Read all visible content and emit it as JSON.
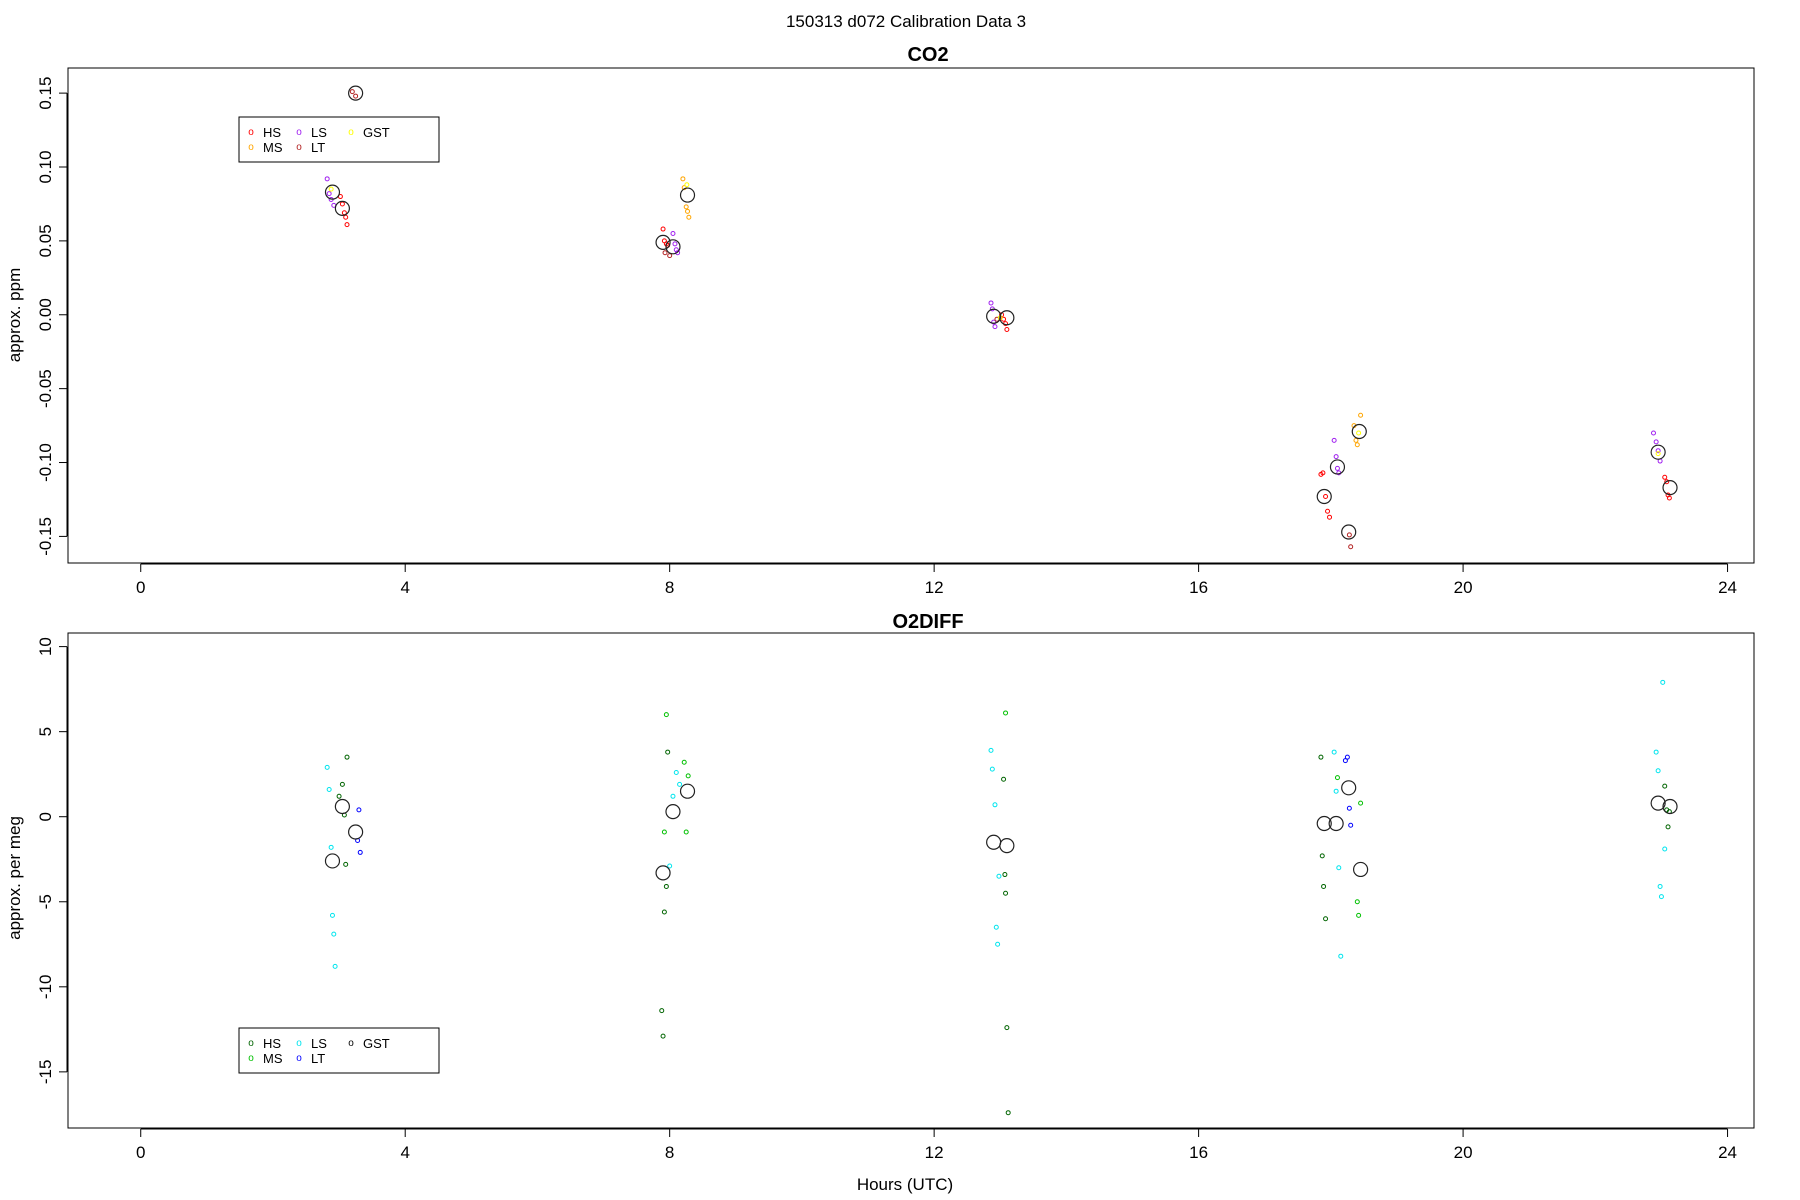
{
  "figure": {
    "title": "150313   d072   Calibration Data 3"
  },
  "legend_symbol": "o",
  "chart_data": [
    {
      "type": "scatter",
      "title": "CO2",
      "xlabel": "",
      "ylabel": "approx. ppm",
      "xlim": [
        -1.1,
        24.4
      ],
      "ylim": [
        -0.168,
        0.167
      ],
      "xticks": [
        0,
        4,
        8,
        12,
        16,
        20,
        24
      ],
      "yticks": [
        {
          "v": 0.15,
          "label": "0.15"
        },
        {
          "v": 0.1,
          "label": "0.10"
        },
        {
          "v": 0.05,
          "label": "0.05"
        },
        {
          "v": 0.0,
          "label": "0.00"
        },
        {
          "v": -0.05,
          "label": "-0.05"
        },
        {
          "v": -0.1,
          "label": "-0.10"
        },
        {
          "v": -0.15,
          "label": "-0.15"
        }
      ],
      "grid": false,
      "legend": {
        "position": "top-left",
        "entries": [
          "HS",
          "MS",
          "LS",
          "LT",
          "GST"
        ]
      },
      "series": [
        {
          "name": "HS",
          "color": "#ff0000",
          "points": [
            [
              3.02,
              0.08
            ],
            [
              3.05,
              0.075
            ],
            [
              3.08,
              0.069
            ],
            [
              3.1,
              0.066
            ],
            [
              3.12,
              0.061
            ],
            [
              7.9,
              0.058
            ],
            [
              7.92,
              0.05
            ],
            [
              7.95,
              0.048
            ],
            [
              7.97,
              0.047
            ],
            [
              13.02,
              0.0
            ],
            [
              13.05,
              -0.003
            ],
            [
              13.08,
              -0.006
            ],
            [
              13.1,
              -0.01
            ],
            [
              17.85,
              -0.108
            ],
            [
              17.88,
              -0.107
            ],
            [
              17.92,
              -0.123
            ],
            [
              17.95,
              -0.133
            ],
            [
              17.98,
              -0.137
            ],
            [
              23.05,
              -0.11
            ],
            [
              23.08,
              -0.113
            ],
            [
              23.1,
              -0.122
            ],
            [
              23.12,
              -0.124
            ]
          ]
        },
        {
          "name": "MS",
          "color": "#ffa500",
          "points": [
            [
              8.2,
              0.092
            ],
            [
              8.22,
              0.086
            ],
            [
              8.25,
              0.073
            ],
            [
              8.27,
              0.07
            ],
            [
              8.29,
              0.066
            ],
            [
              18.35,
              -0.075
            ],
            [
              18.38,
              -0.085
            ],
            [
              18.4,
              -0.088
            ],
            [
              18.45,
              -0.068
            ]
          ]
        },
        {
          "name": "LS",
          "color": "#a020f0",
          "points": [
            [
              2.82,
              0.092
            ],
            [
              2.85,
              0.082
            ],
            [
              2.88,
              0.078
            ],
            [
              2.92,
              0.074
            ],
            [
              8.05,
              0.055
            ],
            [
              8.08,
              0.048
            ],
            [
              8.1,
              0.044
            ],
            [
              8.12,
              0.042
            ],
            [
              12.86,
              0.008
            ],
            [
              12.88,
              0.004
            ],
            [
              12.9,
              -0.005
            ],
            [
              12.92,
              -0.008
            ],
            [
              18.05,
              -0.085
            ],
            [
              18.08,
              -0.096
            ],
            [
              18.1,
              -0.104
            ],
            [
              18.12,
              -0.107
            ],
            [
              22.88,
              -0.08
            ],
            [
              22.92,
              -0.086
            ],
            [
              22.95,
              -0.092
            ],
            [
              22.98,
              -0.099
            ]
          ]
        },
        {
          "name": "LT",
          "color": "#b22222",
          "points": [
            [
              3.2,
              0.151
            ],
            [
              3.25,
              0.148
            ],
            [
              7.93,
              0.042
            ],
            [
              8.0,
              0.04
            ],
            [
              12.95,
              -0.003
            ],
            [
              18.28,
              -0.149
            ],
            [
              18.3,
              -0.157
            ]
          ]
        },
        {
          "name": "GST",
          "color": "#ffff00",
          "points": [
            [
              2.88,
              0.085
            ],
            [
              8.26,
              0.088
            ],
            [
              13.0,
              -0.002
            ],
            [
              18.42,
              -0.08
            ],
            [
              22.95,
              -0.094
            ]
          ]
        },
        {
          "name": "",
          "color": "#000000",
          "big": true,
          "points": [
            [
              2.9,
              0.083
            ],
            [
              3.05,
              0.072
            ],
            [
              3.25,
              0.15
            ],
            [
              7.9,
              0.049
            ],
            [
              8.05,
              0.046
            ],
            [
              8.27,
              0.081
            ],
            [
              12.9,
              -0.001
            ],
            [
              13.1,
              -0.002
            ],
            [
              17.9,
              -0.123
            ],
            [
              18.1,
              -0.103
            ],
            [
              18.27,
              -0.147
            ],
            [
              18.43,
              -0.079
            ],
            [
              22.95,
              -0.093
            ],
            [
              23.13,
              -0.117
            ]
          ]
        }
      ]
    },
    {
      "type": "scatter",
      "title": "O2DIFF",
      "xlabel": "Hours (UTC)",
      "ylabel": "approx. per meg",
      "xlim": [
        -1.1,
        24.4
      ],
      "ylim": [
        -18.3,
        10.8
      ],
      "xticks": [
        0,
        4,
        8,
        12,
        16,
        20,
        24
      ],
      "yticks": [
        {
          "v": 10,
          "label": "10"
        },
        {
          "v": 5,
          "label": "5"
        },
        {
          "v": 0,
          "label": "0"
        },
        {
          "v": -5,
          "label": "-5"
        },
        {
          "v": -10,
          "label": "-10"
        },
        {
          "v": -15,
          "label": "-15"
        }
      ],
      "grid": false,
      "legend": {
        "position": "bottom-left",
        "entries": [
          "HS",
          "MS",
          "LS",
          "LT",
          "GST"
        ]
      },
      "series": [
        {
          "name": "HS",
          "color": "#006400",
          "points": [
            [
              3.0,
              1.2
            ],
            [
              3.05,
              1.9
            ],
            [
              3.08,
              0.1
            ],
            [
              3.1,
              -2.8
            ],
            [
              3.12,
              3.5
            ],
            [
              7.88,
              -11.4
            ],
            [
              7.9,
              -12.9
            ],
            [
              7.92,
              -5.6
            ],
            [
              7.95,
              -4.1
            ],
            [
              7.97,
              3.8
            ],
            [
              13.05,
              2.2
            ],
            [
              13.07,
              -3.4
            ],
            [
              13.08,
              -4.5
            ],
            [
              13.1,
              -12.4
            ],
            [
              13.12,
              -17.4
            ],
            [
              17.85,
              3.5
            ],
            [
              17.87,
              -2.3
            ],
            [
              17.89,
              -4.1
            ],
            [
              17.92,
              -6.0
            ],
            [
              23.05,
              1.8
            ],
            [
              23.08,
              0.4
            ],
            [
              23.1,
              -0.6
            ],
            [
              23.12,
              0.3
            ]
          ]
        },
        {
          "name": "MS",
          "color": "#00c000",
          "points": [
            [
              7.92,
              -0.9
            ],
            [
              7.95,
              6.0
            ],
            [
              8.22,
              3.2
            ],
            [
              8.25,
              -0.9
            ],
            [
              8.28,
              2.4
            ],
            [
              13.08,
              6.1
            ],
            [
              18.4,
              -5.0
            ],
            [
              18.42,
              -5.8
            ],
            [
              18.45,
              0.8
            ],
            [
              18.1,
              2.3
            ]
          ]
        },
        {
          "name": "LS",
          "color": "#00e5ee",
          "points": [
            [
              2.82,
              2.9
            ],
            [
              2.85,
              1.6
            ],
            [
              2.88,
              -1.8
            ],
            [
              2.9,
              -5.8
            ],
            [
              2.92,
              -6.9
            ],
            [
              2.94,
              -8.8
            ],
            [
              8.0,
              -2.9
            ],
            [
              8.05,
              1.2
            ],
            [
              8.1,
              2.6
            ],
            [
              8.15,
              1.9
            ],
            [
              12.86,
              3.9
            ],
            [
              12.88,
              2.8
            ],
            [
              12.92,
              0.7
            ],
            [
              12.94,
              -6.5
            ],
            [
              12.96,
              -7.5
            ],
            [
              12.98,
              -3.5
            ],
            [
              18.05,
              3.8
            ],
            [
              18.08,
              1.5
            ],
            [
              18.12,
              -3.0
            ],
            [
              18.15,
              -8.2
            ],
            [
              22.92,
              3.8
            ],
            [
              22.95,
              2.7
            ],
            [
              22.98,
              -4.1
            ],
            [
              23.0,
              -4.7
            ],
            [
              23.02,
              7.9
            ],
            [
              23.05,
              -1.9
            ]
          ]
        },
        {
          "name": "LT",
          "color": "#0000ff",
          "points": [
            [
              3.3,
              0.4
            ],
            [
              3.28,
              -1.4
            ],
            [
              3.32,
              -2.1
            ],
            [
              18.25,
              3.5
            ],
            [
              18.28,
              0.5
            ],
            [
              18.3,
              -0.5
            ],
            [
              18.22,
              3.3
            ]
          ]
        },
        {
          "name": "",
          "color": "#000000",
          "big": true,
          "points": [
            [
              2.9,
              -2.6
            ],
            [
              3.05,
              0.6
            ],
            [
              3.25,
              -0.9
            ],
            [
              7.9,
              -3.3
            ],
            [
              8.05,
              0.3
            ],
            [
              8.27,
              1.5
            ],
            [
              12.9,
              -1.5
            ],
            [
              13.1,
              -1.7
            ],
            [
              17.9,
              -0.4
            ],
            [
              18.08,
              -0.4
            ],
            [
              18.27,
              1.7
            ],
            [
              18.45,
              -3.1
            ],
            [
              22.95,
              0.8
            ],
            [
              23.13,
              0.6
            ]
          ]
        }
      ]
    }
  ]
}
